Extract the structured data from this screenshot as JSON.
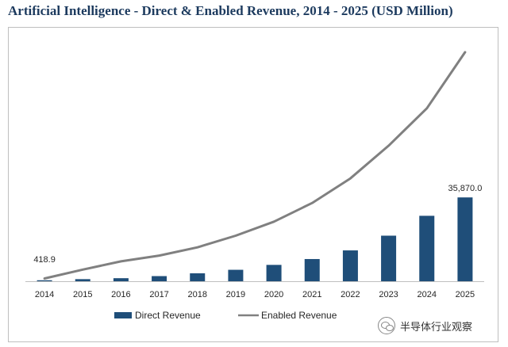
{
  "title": "Artificial Intelligence - Direct & Enabled Revenue, 2014 - 2025 (USD Million)",
  "watermark": "半导体行业观察",
  "chart_data": {
    "type": "bar",
    "title": "Artificial Intelligence - Direct & Enabled Revenue, 2014 - 2025 (USD Million)",
    "categories": [
      "2014",
      "2015",
      "2016",
      "2017",
      "2018",
      "2019",
      "2020",
      "2021",
      "2022",
      "2023",
      "2024",
      "2025"
    ],
    "series": [
      {
        "name": "Direct Revenue",
        "type": "bar",
        "color": "#1f4e79",
        "values": [
          418.9,
          900,
          1300,
          2200,
          3400,
          4900,
          7000,
          9500,
          13200,
          19500,
          28000,
          35870.0
        ]
      },
      {
        "name": "Enabled Revenue",
        "type": "line",
        "color": "#808080",
        "values": [
          1200,
          5000,
          8500,
          11000,
          14500,
          19500,
          25500,
          33500,
          44000,
          58000,
          74000,
          98000
        ]
      }
    ],
    "data_labels": [
      {
        "series": "Direct Revenue",
        "category": "2014",
        "text": "418.9"
      },
      {
        "series": "Direct Revenue",
        "category": "2025",
        "text": "35,870.0"
      }
    ],
    "ylim": [
      0,
      100000
    ],
    "y_axis_visible": false,
    "grid": false,
    "legend": "bottom"
  }
}
